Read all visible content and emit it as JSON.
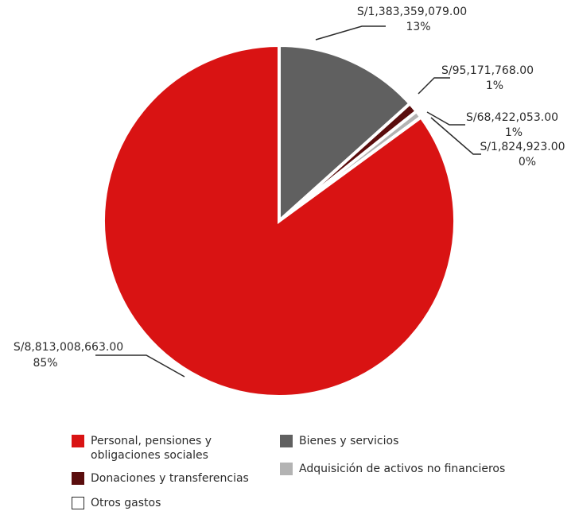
{
  "chart_data": {
    "type": "pie",
    "title": "",
    "slices": [
      {
        "name": "Bienes y servicios",
        "value": 1383359079.0,
        "value_label": "S/1,383,359,079.00",
        "percent_label": "13%",
        "color": "#606060"
      },
      {
        "name": "Donaciones y transferencias",
        "value": 95171768.0,
        "value_label": "S/95,171,768.00",
        "percent_label": "1%",
        "color": "#5a0d0d"
      },
      {
        "name": "Adquisición de activos no financieros",
        "value": 68422053.0,
        "value_label": "S/68,422,053.00",
        "percent_label": "1%",
        "color": "#b3b3b3"
      },
      {
        "name": "Otros gastos",
        "value": 1824923.0,
        "value_label": "S/1,824,923.00",
        "percent_label": "0%",
        "color": "#ffffff"
      },
      {
        "name": "Personal, pensiones y obligaciones sociales",
        "value": 8813008663.0,
        "value_label": "S/8,813,008,663.00",
        "percent_label": "85%",
        "color": "#d91313"
      }
    ],
    "legend_position": "bottom"
  },
  "legend": {
    "items": [
      {
        "label_line1": "Personal, pensiones y",
        "label_line2": "obligaciones sociales",
        "color": "#d91313"
      },
      {
        "label_line1": "Bienes y servicios",
        "label_line2": "",
        "color": "#606060"
      },
      {
        "label_line1": "Donaciones y transferencias",
        "label_line2": "",
        "color": "#5a0d0d"
      },
      {
        "label_line1": "Adquisición de activos no financieros",
        "label_line2": "",
        "color": "#b3b3b3"
      },
      {
        "label_line1": "Otros gastos",
        "label_line2": "",
        "color": "#ffffff"
      }
    ]
  }
}
